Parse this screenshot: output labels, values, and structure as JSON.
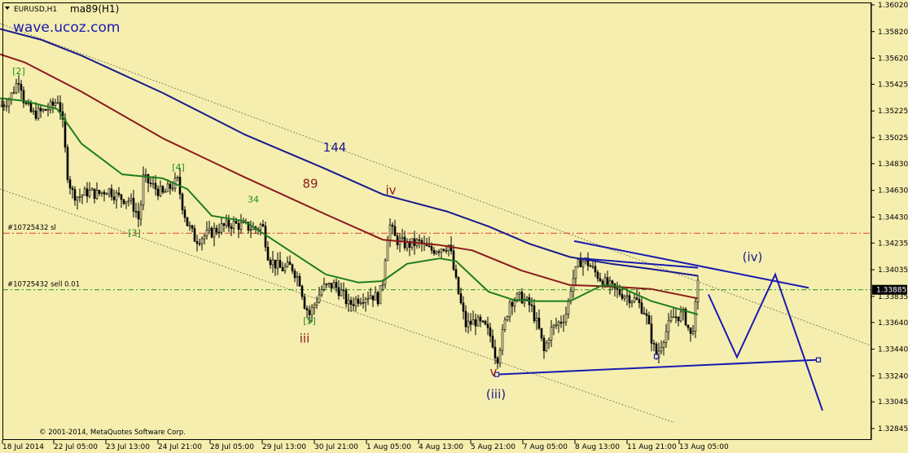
{
  "header": {
    "symbol": "EURUSD,H1",
    "indicator": "ma89(H1)",
    "watermark": "wave.ucoz.com",
    "copyright": "© 2001-2014, MetaQuotes Software Corp."
  },
  "order_lines": [
    {
      "label": "#10725432 sl",
      "price": 1.34309,
      "color": "#e0402a"
    },
    {
      "label": "#10725432 sell 0.01",
      "price": 1.33885,
      "color": "#1e9a1e"
    }
  ],
  "current_price": {
    "label": "1.33885",
    "value": 1.33885
  },
  "chart_data": {
    "type": "candlestick",
    "title": "",
    "xlabel": "",
    "ylabel": "",
    "ylim": [
      1.3279,
      1.3602
    ],
    "grid": false,
    "y_ticks": [
      "1.36020",
      "1.35820",
      "1.35620",
      "1.35425",
      "1.35225",
      "1.35025",
      "1.34830",
      "1.34630",
      "1.34430",
      "1.34235",
      "1.34035",
      "1.33835",
      "1.33640",
      "1.33440",
      "1.33240",
      "1.33045",
      "1.32845"
    ],
    "x_ticks": [
      "18 Jul 2014",
      "22 Jul 05:00",
      "23 Jul 13:00",
      "24 Jul 21:00",
      "28 Jul 05:00",
      "29 Jul 13:00",
      "30 Jul 21:00",
      "1 Aug 05:00",
      "4 Aug 13:00",
      "5 Aug 21:00",
      "7 Aug 05:00",
      "8 Aug 13:00",
      "11 Aug 21:00",
      "13 Aug 05:00"
    ],
    "price_path": [
      [
        0,
        1.3526
      ],
      [
        12,
        1.3532
      ],
      [
        24,
        1.3548
      ],
      [
        30,
        1.3528
      ],
      [
        40,
        1.352
      ],
      [
        52,
        1.3522
      ],
      [
        64,
        1.3526
      ],
      [
        72,
        1.3532
      ],
      [
        78,
        1.3508
      ],
      [
        82,
        1.3478
      ],
      [
        88,
        1.3462
      ],
      [
        96,
        1.3458
      ],
      [
        108,
        1.3462
      ],
      [
        120,
        1.346
      ],
      [
        132,
        1.3464
      ],
      [
        145,
        1.3458
      ],
      [
        158,
        1.3456
      ],
      [
        166,
        1.3449
      ],
      [
        171,
        1.344
      ],
      [
        176,
        1.3472
      ],
      [
        188,
        1.3466
      ],
      [
        200,
        1.346
      ],
      [
        210,
        1.3466
      ],
      [
        218,
        1.347
      ],
      [
        224,
        1.3452
      ],
      [
        230,
        1.3438
      ],
      [
        240,
        1.3426
      ],
      [
        255,
        1.343
      ],
      [
        270,
        1.3435
      ],
      [
        285,
        1.3438
      ],
      [
        300,
        1.3436
      ],
      [
        315,
        1.3434
      ],
      [
        322,
        1.3438
      ],
      [
        330,
        1.3412
      ],
      [
        345,
        1.3404
      ],
      [
        358,
        1.3406
      ],
      [
        368,
        1.3395
      ],
      [
        374,
        1.3378
      ],
      [
        380,
        1.337
      ],
      [
        388,
        1.338
      ],
      [
        396,
        1.339
      ],
      [
        410,
        1.3392
      ],
      [
        420,
        1.3386
      ],
      [
        428,
        1.3377
      ],
      [
        440,
        1.3382
      ],
      [
        455,
        1.3385
      ],
      [
        465,
        1.3382
      ],
      [
        470,
        1.3395
      ],
      [
        474,
        1.342
      ],
      [
        478,
        1.3438
      ],
      [
        486,
        1.3426
      ],
      [
        500,
        1.3422
      ],
      [
        514,
        1.3424
      ],
      [
        528,
        1.3418
      ],
      [
        540,
        1.342
      ],
      [
        552,
        1.3422
      ],
      [
        558,
        1.34
      ],
      [
        565,
        1.338
      ],
      [
        572,
        1.3362
      ],
      [
        584,
        1.3365
      ],
      [
        596,
        1.336
      ],
      [
        604,
        1.3352
      ],
      [
        610,
        1.3335
      ],
      [
        618,
        1.3358
      ],
      [
        626,
        1.338
      ],
      [
        640,
        1.3383
      ],
      [
        652,
        1.3376
      ],
      [
        662,
        1.3358
      ],
      [
        668,
        1.3342
      ],
      [
        676,
        1.3358
      ],
      [
        690,
        1.3366
      ],
      [
        696,
        1.3372
      ],
      [
        702,
        1.3394
      ],
      [
        712,
        1.341
      ],
      [
        720,
        1.341
      ],
      [
        730,
        1.3402
      ],
      [
        742,
        1.3394
      ],
      [
        755,
        1.3388
      ],
      [
        770,
        1.3384
      ],
      [
        782,
        1.338
      ],
      [
        792,
        1.3372
      ],
      [
        800,
        1.3352
      ],
      [
        806,
        1.3338
      ],
      [
        814,
        1.3352
      ],
      [
        826,
        1.3368
      ],
      [
        840,
        1.337
      ],
      [
        848,
        1.3354
      ],
      [
        852,
        1.3364
      ],
      [
        857,
        1.3392
      ]
    ],
    "series": [
      {
        "name": "144",
        "color": "#1a1a8c",
        "points": [
          [
            0,
            1.3584
          ],
          [
            50,
            1.3576
          ],
          [
            100,
            1.3564
          ],
          [
            200,
            1.3536
          ],
          [
            300,
            1.3505
          ],
          [
            400,
            1.3479
          ],
          [
            470,
            1.346
          ],
          [
            550,
            1.3447
          ],
          [
            600,
            1.3436
          ],
          [
            650,
            1.3423
          ],
          [
            700,
            1.3413
          ],
          [
            750,
            1.3408
          ],
          [
            800,
            1.3404
          ],
          [
            857,
            1.3399
          ]
        ]
      },
      {
        "name": "89",
        "color": "#8c1a1a",
        "points": [
          [
            0,
            1.3565
          ],
          [
            30,
            1.3559
          ],
          [
            100,
            1.3537
          ],
          [
            200,
            1.3502
          ],
          [
            300,
            1.3473
          ],
          [
            400,
            1.3445
          ],
          [
            470,
            1.3426
          ],
          [
            540,
            1.3422
          ],
          [
            580,
            1.3418
          ],
          [
            640,
            1.3403
          ],
          [
            700,
            1.3392
          ],
          [
            750,
            1.3391
          ],
          [
            800,
            1.3389
          ],
          [
            857,
            1.3382
          ]
        ]
      },
      {
        "name": "34",
        "color": "#1e7d1e",
        "points": [
          [
            0,
            1.3532
          ],
          [
            30,
            1.353
          ],
          [
            70,
            1.3524
          ],
          [
            100,
            1.3498
          ],
          [
            150,
            1.3475
          ],
          [
            200,
            1.3472
          ],
          [
            230,
            1.3464
          ],
          [
            260,
            1.3444
          ],
          [
            300,
            1.344
          ],
          [
            350,
            1.342
          ],
          [
            400,
            1.34
          ],
          [
            440,
            1.3394
          ],
          [
            470,
            1.3395
          ],
          [
            500,
            1.3408
          ],
          [
            540,
            1.3412
          ],
          [
            560,
            1.341
          ],
          [
            600,
            1.3387
          ],
          [
            630,
            1.3381
          ],
          [
            660,
            1.338
          ],
          [
            700,
            1.338
          ],
          [
            740,
            1.3392
          ],
          [
            760,
            1.3391
          ],
          [
            800,
            1.338
          ],
          [
            857,
            1.337
          ]
        ]
      }
    ],
    "channel_lines": [
      {
        "from": [
          0,
          1.3588
        ],
        "to": [
          1068,
          1.3347
        ]
      },
      {
        "from": [
          0,
          1.3464
        ],
        "to": [
          828,
          1.3289
        ]
      }
    ],
    "projection_lines": [
      {
        "from": [
          705,
          1.3425
        ],
        "to": [
          993,
          1.339
        ]
      },
      {
        "from": [
          610,
          1.3325
        ],
        "to": [
          1005,
          1.3336
        ]
      },
      {
        "from": [
          713,
          1.3412
        ],
        "to": [
          857,
          1.3405
        ]
      }
    ],
    "projection_path": [
      [
        870,
        1.3385
      ],
      [
        905,
        1.3338
      ],
      [
        952,
        1.34
      ],
      [
        1010,
        1.3298
      ]
    ],
    "annotations": [
      {
        "text": "[2]",
        "x": 23,
        "y": 1.355,
        "color": "#1e8c1e",
        "size": 11
      },
      {
        "text": "[4]",
        "x": 219,
        "y": 1.3478,
        "color": "#1e8c1e",
        "size": 11
      },
      {
        "text": "[3]",
        "x": 165,
        "y": 1.3429,
        "color": "#1e8c1e",
        "size": 11
      },
      {
        "text": "34",
        "x": 311,
        "y": 1.3454,
        "color": "#1e8c1e",
        "size": 11
      },
      {
        "text": "[5]",
        "x": 380,
        "y": 1.3363,
        "color": "#1e8c1e",
        "size": 11
      },
      {
        "text": "iii",
        "x": 374,
        "y": 1.3349,
        "color": "#8c1a1a",
        "size": 15
      },
      {
        "text": "89",
        "x": 381,
        "y": 1.3465,
        "color": "#8c1a1a",
        "size": 15
      },
      {
        "text": "144",
        "x": 411,
        "y": 1.3492,
        "color": "#1a1a8c",
        "size": 15
      },
      {
        "text": "iv",
        "x": 480,
        "y": 1.346,
        "color": "#8c1a1a",
        "size": 15
      },
      {
        "text": "v",
        "x": 606,
        "y": 1.3324,
        "color": "#8c1a1a",
        "size": 15
      },
      {
        "text": "(iii)",
        "x": 609,
        "y": 1.3307,
        "color": "#1a1a8c",
        "size": 15
      },
      {
        "text": "(iv)",
        "x": 924,
        "y": 1.341,
        "color": "#1a1a8c",
        "size": 15
      }
    ]
  }
}
